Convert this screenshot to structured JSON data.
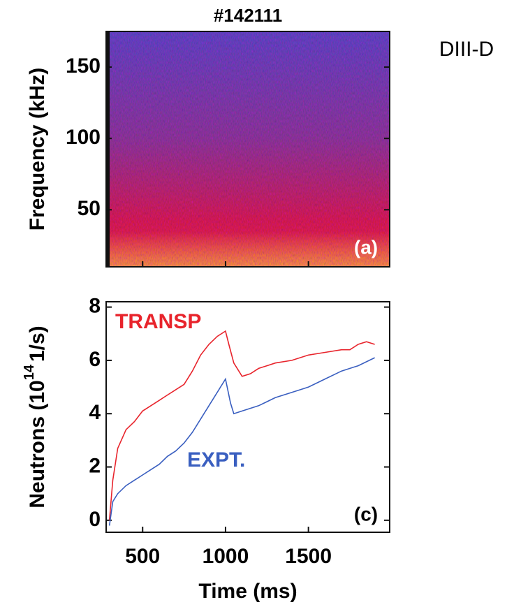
{
  "label": "DIII-D",
  "chart_data": [
    {
      "type": "spectrogram",
      "title": "#142111",
      "ylabel": "Frequency (kHz)",
      "annotation": "(a)",
      "xlim": [
        280,
        1990
      ],
      "xticks": [
        500,
        1000,
        1500
      ],
      "ylim": [
        10,
        175
      ],
      "yticks": [
        50,
        100,
        150
      ]
    },
    {
      "type": "line",
      "xlabel": "Time (ms)",
      "ylabel": {
        "text": "Neutrons (10",
        "sup": "14",
        "rest": "1/s)"
      },
      "annotation": "(c)",
      "xlim": [
        280,
        1990
      ],
      "xticks": [
        500,
        1000,
        1500
      ],
      "ylim": [
        -0.45,
        8.2
      ],
      "yticks": [
        0,
        2,
        4,
        6,
        8
      ],
      "series": [
        {
          "name": "TRANSP",
          "color": "#e8242c",
          "x": [
            300,
            320,
            350,
            400,
            450,
            500,
            550,
            600,
            650,
            700,
            750,
            800,
            850,
            900,
            950,
            1000,
            1020,
            1050,
            1100,
            1150,
            1200,
            1250,
            1300,
            1400,
            1500,
            1600,
            1700,
            1750,
            1800,
            1850,
            1900
          ],
          "values": [
            0,
            1.5,
            2.7,
            3.4,
            3.7,
            4.1,
            4.3,
            4.5,
            4.7,
            4.9,
            5.1,
            5.6,
            6.2,
            6.6,
            6.9,
            7.1,
            6.6,
            5.9,
            5.4,
            5.5,
            5.7,
            5.8,
            5.9,
            6.0,
            6.2,
            6.3,
            6.4,
            6.4,
            6.6,
            6.7,
            6.6
          ]
        },
        {
          "name": "EXPT.",
          "color": "#3a5fc0",
          "x": [
            300,
            320,
            350,
            400,
            450,
            500,
            550,
            600,
            650,
            700,
            750,
            800,
            850,
            900,
            950,
            1000,
            1030,
            1050,
            1100,
            1200,
            1300,
            1400,
            1500,
            1600,
            1700,
            1800,
            1900
          ],
          "values": [
            -0.2,
            0.7,
            1.0,
            1.3,
            1.5,
            1.7,
            1.9,
            2.1,
            2.4,
            2.6,
            2.9,
            3.3,
            3.8,
            4.3,
            4.8,
            5.3,
            4.4,
            4.0,
            4.1,
            4.3,
            4.6,
            4.8,
            5.0,
            5.3,
            5.6,
            5.8,
            6.1
          ]
        }
      ]
    }
  ]
}
